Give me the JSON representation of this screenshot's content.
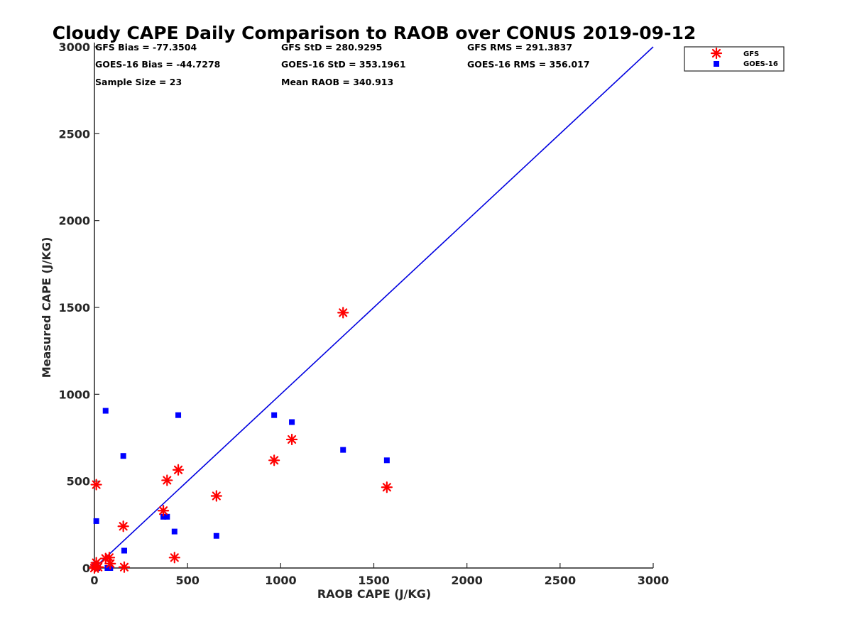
{
  "chart_data": {
    "type": "scatter",
    "title": "Cloudy CAPE Daily Comparison to RAOB over CONUS 2019-09-12",
    "xlabel": "RAOB CAPE (J/KG)",
    "ylabel": "Measured CAPE (J/KG)",
    "xlim": [
      0,
      3000
    ],
    "ylim": [
      0,
      3000
    ],
    "xticks": [
      "0",
      "500",
      "1000",
      "1500",
      "2000",
      "2500",
      "3000"
    ],
    "yticks": [
      "0",
      "500",
      "1000",
      "1500",
      "2000",
      "2500",
      "3000"
    ],
    "grid": false,
    "legend_position": "top-right",
    "stats": [
      "GFS Bias = -77.3504",
      "GFS StD = 280.9295",
      "GFS RMS = 291.3837",
      "GOES-16 Bias = -44.7278",
      "GOES-16 StD = 353.1961",
      "GOES-16 RMS = 356.017",
      "Sample Size = 23",
      "Mean RAOB = 340.913"
    ],
    "reference_line": {
      "x": [
        0,
        3000
      ],
      "y": [
        0,
        3000
      ],
      "color": "#0000e0"
    },
    "series": [
      {
        "name": "GFS",
        "marker": "asterisk",
        "color": "#ff0000",
        "points": [
          [
            0,
            0
          ],
          [
            5,
            10
          ],
          [
            10,
            480
          ],
          [
            10,
            30
          ],
          [
            20,
            5
          ],
          [
            60,
            55
          ],
          [
            80,
            60
          ],
          [
            85,
            25
          ],
          [
            155,
            240
          ],
          [
            160,
            5
          ],
          [
            370,
            330
          ],
          [
            390,
            505
          ],
          [
            430,
            60
          ],
          [
            450,
            565
          ],
          [
            655,
            415
          ],
          [
            965,
            620
          ],
          [
            1060,
            740
          ],
          [
            1335,
            1470
          ],
          [
            1570,
            465
          ]
        ]
      },
      {
        "name": "GOES-16",
        "marker": "square",
        "color": "#0000ff",
        "points": [
          [
            0,
            5
          ],
          [
            5,
            20
          ],
          [
            10,
            270
          ],
          [
            15,
            0
          ],
          [
            60,
            905
          ],
          [
            70,
            0
          ],
          [
            85,
            0
          ],
          [
            155,
            645
          ],
          [
            160,
            100
          ],
          [
            370,
            295
          ],
          [
            390,
            295
          ],
          [
            430,
            210
          ],
          [
            450,
            880
          ],
          [
            655,
            185
          ],
          [
            965,
            880
          ],
          [
            1060,
            840
          ],
          [
            1335,
            680
          ],
          [
            1570,
            620
          ]
        ]
      }
    ]
  }
}
